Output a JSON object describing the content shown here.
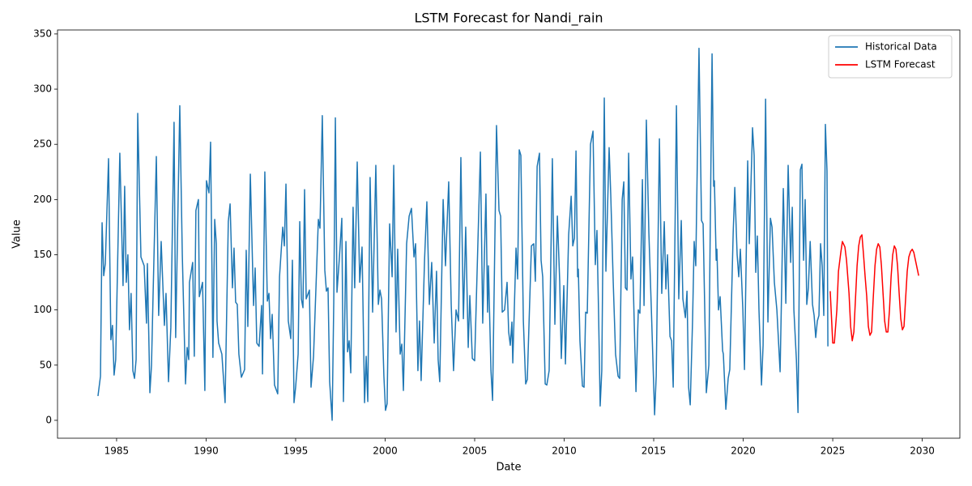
{
  "chart_data": {
    "type": "line",
    "title": "LSTM Forecast for Nandi_rain",
    "x_label": "Date",
    "y_label": "Value",
    "xlim": [
      1981.7,
      2032.1
    ],
    "ylim": [
      -16.2,
      353.6
    ],
    "xticks": [
      1985,
      1990,
      1995,
      2000,
      2005,
      2010,
      2015,
      2020,
      2025,
      2030
    ],
    "yticks": [
      0,
      50,
      100,
      150,
      200,
      250,
      300,
      350
    ],
    "grid": false,
    "legend": "upper right",
    "series": [
      {
        "name": "Historical Data",
        "color": "#1f77b4",
        "x": [
          1983.96,
          1984.1,
          1984.19,
          1984.28,
          1984.37,
          1984.55,
          1984.68,
          1984.77,
          1984.86,
          1984.95,
          1985.18,
          1985.36,
          1985.45,
          1985.54,
          1985.63,
          1985.72,
          1985.81,
          1985.91,
          1986.0,
          1986.09,
          1986.18,
          1986.36,
          1986.54,
          1986.67,
          1986.72,
          1986.86,
          1986.95,
          1987.04,
          1987.22,
          1987.35,
          1987.49,
          1987.67,
          1987.76,
          1987.9,
          1988.03,
          1988.21,
          1988.3,
          1988.53,
          1988.67,
          1988.85,
          1988.94,
          1989.03,
          1989.07,
          1989.25,
          1989.34,
          1989.43,
          1989.57,
          1989.62,
          1989.8,
          1989.93,
          1990.02,
          1990.16,
          1990.25,
          1990.38,
          1990.48,
          1990.57,
          1990.61,
          1990.7,
          1990.88,
          1991.06,
          1991.24,
          1991.34,
          1991.47,
          1991.56,
          1991.65,
          1991.74,
          1991.83,
          1991.97,
          1992.15,
          1992.24,
          1992.33,
          1992.47,
          1992.65,
          1992.74,
          1992.83,
          1992.96,
          1993.1,
          1993.15,
          1993.28,
          1993.42,
          1993.51,
          1993.6,
          1993.69,
          1993.82,
          1994.0,
          1994.1,
          1994.28,
          1994.37,
          1994.46,
          1994.59,
          1994.73,
          1994.82,
          1994.91,
          1995.0,
          1995.14,
          1995.23,
          1995.32,
          1995.41,
          1995.5,
          1995.59,
          1995.77,
          1995.86,
          1996.0,
          1996.27,
          1996.36,
          1996.49,
          1996.63,
          1996.72,
          1996.81,
          1996.9,
          1997.04,
          1997.13,
          1997.22,
          1997.31,
          1997.44,
          1997.58,
          1997.67,
          1997.81,
          1997.9,
          1997.99,
          1998.08,
          1998.21,
          1998.3,
          1998.44,
          1998.58,
          1998.71,
          1998.85,
          1998.94,
          1999.03,
          1999.16,
          1999.3,
          1999.48,
          1999.62,
          1999.71,
          1999.8,
          1999.93,
          2000.02,
          2000.11,
          2000.25,
          2000.39,
          2000.48,
          2000.61,
          2000.7,
          2000.84,
          2000.93,
          2001.02,
          2001.2,
          2001.34,
          2001.47,
          2001.61,
          2001.7,
          2001.83,
          2001.92,
          2002.01,
          2002.2,
          2002.33,
          2002.47,
          2002.6,
          2002.74,
          2002.87,
          2002.96,
          2003.05,
          2003.24,
          2003.37,
          2003.55,
          2003.69,
          2003.82,
          2003.96,
          2004.1,
          2004.23,
          2004.37,
          2004.5,
          2004.64,
          2004.73,
          2004.87,
          2005.0,
          2005.32,
          2005.45,
          2005.63,
          2005.72,
          2005.77,
          2005.91,
          2006.0,
          2006.22,
          2006.36,
          2006.45,
          2006.54,
          2006.67,
          2006.81,
          2006.9,
          2006.99,
          2007.08,
          2007.13,
          2007.31,
          2007.4,
          2007.49,
          2007.58,
          2007.72,
          2007.85,
          2007.94,
          2008.17,
          2008.3,
          2008.39,
          2008.49,
          2008.62,
          2008.71,
          2008.8,
          2008.94,
          2009.03,
          2009.16,
          2009.34,
          2009.48,
          2009.62,
          2009.75,
          2009.84,
          2009.98,
          2010.07,
          2010.25,
          2010.39,
          2010.48,
          2010.57,
          2010.66,
          2010.75,
          2010.79,
          2010.88,
          2011.02,
          2011.11,
          2011.2,
          2011.29,
          2011.47,
          2011.61,
          2011.74,
          2011.83,
          2011.92,
          2012.01,
          2012.1,
          2012.24,
          2012.33,
          2012.51,
          2012.6,
          2012.74,
          2012.87,
          2013.01,
          2013.1,
          2013.24,
          2013.33,
          2013.42,
          2013.51,
          2013.6,
          2013.73,
          2013.82,
          2014.01,
          2014.14,
          2014.23,
          2014.37,
          2014.46,
          2014.59,
          2014.73,
          2014.87,
          2015.05,
          2015.14,
          2015.32,
          2015.45,
          2015.59,
          2015.68,
          2015.77,
          2015.91,
          2016.0,
          2016.09,
          2016.27,
          2016.4,
          2016.54,
          2016.63,
          2016.77,
          2016.86,
          2016.95,
          2017.04,
          2017.17,
          2017.26,
          2017.35,
          2017.53,
          2017.67,
          2017.76,
          2017.94,
          2018.08,
          2018.26,
          2018.35,
          2018.39,
          2018.49,
          2018.53,
          2018.62,
          2018.71,
          2018.85,
          2018.89,
          2019.03,
          2019.16,
          2019.25,
          2019.44,
          2019.53,
          2019.66,
          2019.75,
          2019.84,
          2019.98,
          2020.07,
          2020.25,
          2020.34,
          2020.52,
          2020.61,
          2020.7,
          2020.79,
          2020.88,
          2021.02,
          2021.11,
          2021.25,
          2021.38,
          2021.52,
          2021.61,
          2021.74,
          2021.88,
          2022.06,
          2022.15,
          2022.24,
          2022.38,
          2022.51,
          2022.65,
          2022.74,
          2022.83,
          2022.97,
          2023.06,
          2023.19,
          2023.28,
          2023.37,
          2023.46,
          2023.55,
          2023.64,
          2023.74,
          2023.87,
          2023.96,
          2024.05,
          2024.14,
          2024.23,
          2024.32,
          2024.41,
          2024.5,
          2024.59,
          2024.68,
          2024.73
        ],
        "values": [
          22,
          40,
          179,
          131,
          142,
          237,
          73,
          86,
          41,
          55,
          242,
          122,
          212,
          125,
          150,
          82,
          115,
          45,
          38,
          55,
          278,
          148,
          140,
          88,
          142,
          25,
          50,
          115,
          239,
          95,
          162,
          86,
          115,
          35,
          84,
          270,
          75,
          285,
          150,
          33,
          66,
          55,
          125,
          143,
          58,
          190,
          200,
          112,
          125,
          27,
          217,
          206,
          252,
          57,
          182,
          160,
          90,
          70,
          60,
          16,
          180,
          196,
          120,
          156,
          107,
          105,
          60,
          39,
          46,
          154,
          85,
          223,
          104,
          138,
          70,
          67,
          104,
          42,
          225,
          108,
          115,
          74,
          96,
          32,
          24,
          130,
          175,
          158,
          214,
          90,
          74,
          145,
          16,
          30,
          60,
          180,
          110,
          102,
          209,
          110,
          118,
          30,
          58,
          182,
          174,
          276,
          136,
          117,
          120,
          35,
          0,
          107,
          274,
          116,
          146,
          183,
          17,
          162,
          62,
          72,
          43,
          193,
          120,
          234,
          125,
          157,
          16,
          58,
          17,
          220,
          98,
          231,
          105,
          118,
          110,
          40,
          9,
          15,
          178,
          130,
          231,
          80,
          155,
          60,
          69,
          27,
          160,
          185,
          192,
          148,
          160,
          45,
          90,
          36,
          145,
          198,
          105,
          143,
          70,
          135,
          55,
          35,
          200,
          140,
          216,
          105,
          45,
          100,
          90,
          238,
          92,
          175,
          66,
          113,
          56,
          54,
          243,
          88,
          205,
          98,
          140,
          45,
          18,
          267,
          190,
          185,
          98,
          100,
          125,
          80,
          68,
          89,
          52,
          156,
          128,
          245,
          240,
          90,
          33,
          37,
          158,
          160,
          126,
          230,
          242,
          145,
          130,
          33,
          32,
          45,
          237,
          87,
          185,
          126,
          56,
          122,
          51,
          168,
          203,
          158,
          165,
          244,
          130,
          137,
          72,
          31,
          30,
          98,
          97,
          250,
          262,
          141,
          172,
          98,
          13,
          45,
          292,
          135,
          247,
          205,
          125,
          60,
          40,
          38,
          200,
          216,
          120,
          118,
          242,
          128,
          148,
          26,
          100,
          97,
          218,
          104,
          272,
          170,
          100,
          5,
          40,
          255,
          115,
          180,
          119,
          150,
          76,
          72,
          30,
          285,
          110,
          181,
          110,
          93,
          117,
          30,
          14,
          90,
          162,
          140,
          337,
          181,
          178,
          25,
          50,
          332,
          212,
          217,
          145,
          155,
          100,
          112,
          63,
          60,
          10,
          38,
          46,
          170,
          211,
          150,
          130,
          155,
          100,
          46,
          235,
          160,
          265,
          240,
          134,
          167,
          100,
          32,
          68,
          291,
          89,
          183,
          175,
          125,
          100,
          44,
          122,
          210,
          106,
          231,
          143,
          193,
          100,
          55,
          7,
          227,
          232,
          145,
          200,
          105,
          120,
          162,
          105,
          95,
          75,
          90,
          95,
          160,
          140,
          95,
          268,
          226,
          67
        ]
      },
      {
        "name": "LSTM Forecast",
        "color": "#ff0000",
        "x": [
          2024.86,
          2025.0,
          2025.09,
          2025.23,
          2025.32,
          2025.45,
          2025.54,
          2025.68,
          2025.77,
          2025.91,
          2026.0,
          2026.09,
          2026.18,
          2026.27,
          2026.36,
          2026.45,
          2026.54,
          2026.63,
          2026.72,
          2026.81,
          2026.9,
          2026.99,
          2027.08,
          2027.17,
          2027.26,
          2027.36,
          2027.45,
          2027.54,
          2027.63,
          2027.72,
          2027.81,
          2027.9,
          2027.99,
          2028.08,
          2028.17,
          2028.26,
          2028.35,
          2028.44,
          2028.53,
          2028.62,
          2028.71,
          2028.8,
          2028.89,
          2028.98,
          2029.07,
          2029.16,
          2029.25,
          2029.35,
          2029.44,
          2029.53,
          2029.62,
          2029.71,
          2029.8
        ],
        "values": [
          117,
          70,
          70,
          100,
          135,
          152,
          162,
          157,
          145,
          115,
          85,
          72,
          80,
          110,
          140,
          158,
          166,
          168,
          150,
          130,
          112,
          85,
          77,
          80,
          110,
          140,
          155,
          160,
          157,
          140,
          115,
          90,
          80,
          80,
          100,
          130,
          150,
          158,
          155,
          140,
          115,
          92,
          82,
          85,
          110,
          135,
          148,
          153,
          155,
          152,
          145,
          138,
          131
        ]
      }
    ]
  }
}
